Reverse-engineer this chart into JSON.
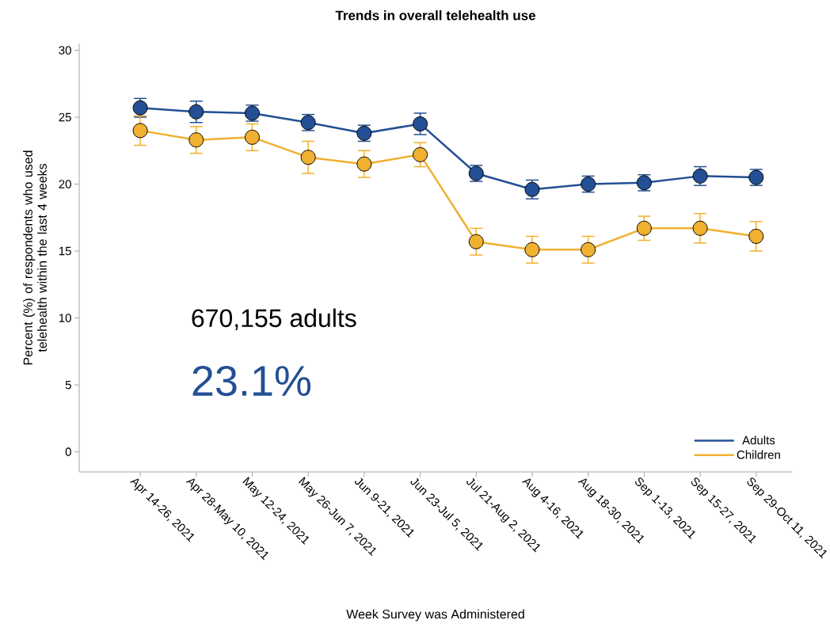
{
  "chart_data": {
    "type": "line",
    "title": "Trends in overall telehealth use",
    "xlabel": "Week Survey was Administered",
    "ylabel": "Percent (%) of respondents who used telehealth within the last 4 weeks",
    "categories": [
      "Apr 14-26, 2021",
      "Apr 28-May 10, 2021",
      "May 12-24, 2021",
      "May 26-Jun 7, 2021",
      "Jun 9-21, 2021",
      "Jun 23-Jul 5, 2021",
      "Jul 21-Aug 2, 2021",
      "Aug 4-16, 2021",
      "Aug 18-30, 2021",
      "Sep 1-13, 2021",
      "Sep 15-27, 2021",
      "Sep 29-Oct 11, 2021"
    ],
    "series": [
      {
        "name": "Adults",
        "color": "#234f94",
        "values": [
          25.7,
          25.4,
          25.3,
          24.6,
          23.8,
          24.5,
          20.8,
          19.6,
          20.0,
          20.1,
          20.6,
          20.5
        ],
        "errors": [
          0.7,
          0.8,
          0.6,
          0.6,
          0.6,
          0.8,
          0.6,
          0.7,
          0.6,
          0.6,
          0.7,
          0.6
        ]
      },
      {
        "name": "Children",
        "color": "#f0b030",
        "values": [
          24.0,
          23.3,
          23.5,
          22.0,
          21.5,
          22.2,
          15.7,
          15.1,
          15.1,
          16.7,
          16.7,
          16.1
        ],
        "errors": [
          1.1,
          1.0,
          1.0,
          1.2,
          1.0,
          0.9,
          1.0,
          1.0,
          1.0,
          0.9,
          1.1,
          1.1
        ]
      }
    ],
    "ylim": [
      -1.5,
      30.5
    ],
    "yticks": [
      0,
      5,
      10,
      15,
      20,
      25,
      30
    ],
    "marker": "circle",
    "line_style": "solid",
    "legend": "bottom right",
    "grid": false,
    "annotations": [
      "670,155 adults",
      "23.1%"
    ]
  }
}
